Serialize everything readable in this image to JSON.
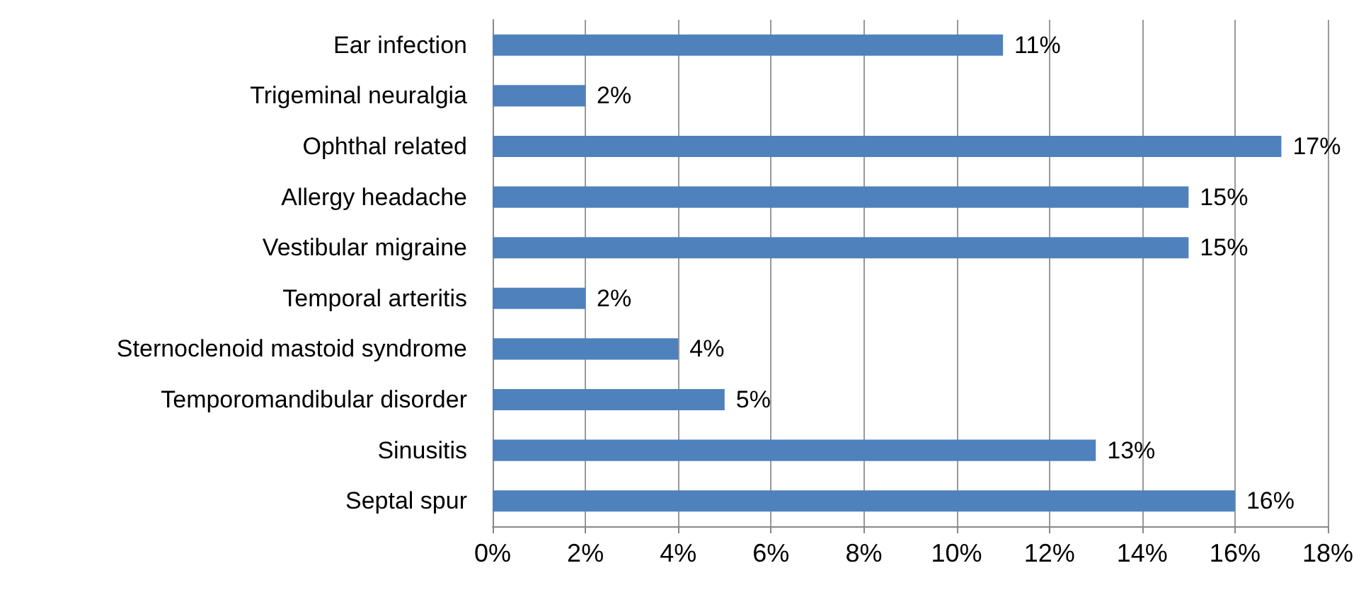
{
  "chart_data": {
    "type": "bar",
    "orientation": "horizontal",
    "categories": [
      "Ear infection",
      "Trigeminal neuralgia",
      "Ophthal related",
      "Allergy headache",
      "Vestibular migraine",
      "Temporal arteritis",
      "Sternoclenoid mastoid syndrome",
      "Temporomandibular disorder",
      "Sinusitis",
      "Septal spur"
    ],
    "series": [
      {
        "color": "#4f81bd",
        "values": [
          11,
          2,
          17,
          15,
          15,
          2,
          4,
          5,
          13,
          16
        ],
        "value_labels": [
          "11%",
          "2%",
          "17%",
          "15%",
          "15%",
          "2%",
          "4%",
          "5%",
          "13%",
          "16%"
        ]
      }
    ],
    "xlim": [
      0,
      18
    ],
    "xticks": [
      {
        "value": 0,
        "label": "0%"
      },
      {
        "value": 2,
        "label": "2%"
      },
      {
        "value": 4,
        "label": "4%"
      },
      {
        "value": 6,
        "label": "6%"
      },
      {
        "value": 8,
        "label": "8%"
      },
      {
        "value": 10,
        "label": "10%"
      },
      {
        "value": 12,
        "label": "12%"
      },
      {
        "value": 14,
        "label": "14%"
      },
      {
        "value": 16,
        "label": "16%"
      },
      {
        "value": 18,
        "label": "18%"
      }
    ],
    "grid": "x"
  }
}
